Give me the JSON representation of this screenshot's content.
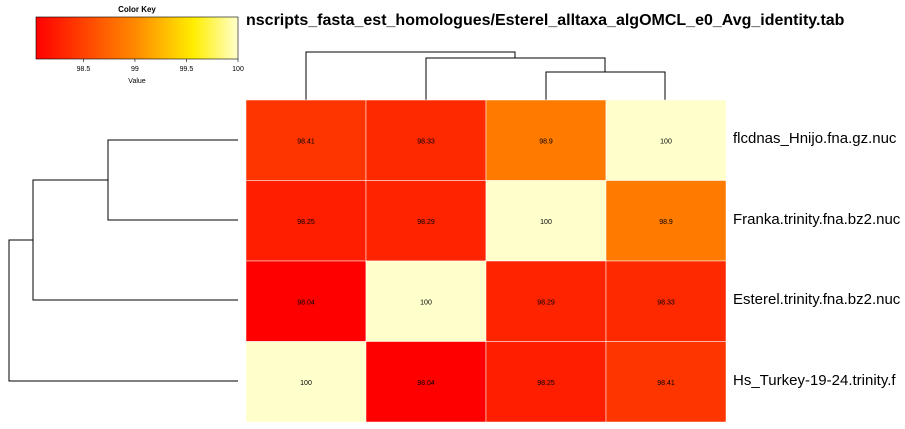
{
  "title": "nscripts_fasta_est_homologues/Esterel_alltaxa_algOMCL_e0_Avg_identity.tab",
  "color_key": {
    "title": "Color Key",
    "xlabel": "Value",
    "ticks": [
      "98.5",
      "99",
      "99.5",
      "100"
    ],
    "range": [
      98.04,
      100
    ],
    "low_color": "#ff0000",
    "high_color": "#ffffcc"
  },
  "chart_data": {
    "type": "heatmap",
    "title": "nscripts_fasta_est_homologues/Esterel_alltaxa_algOMCL_e0_Avg_identity.tab",
    "rows": [
      "flcdnas_Hnijo.fna.gz.nuc",
      "Franka.trinity.fna.bz2.nuc",
      "Esterel.trinity.fna.bz2.nuc",
      "Hs_Turkey-19-24.trinity.f"
    ],
    "values": [
      [
        98.41,
        98.33,
        98.9,
        100
      ],
      [
        98.25,
        98.29,
        100,
        98.9
      ],
      [
        98.04,
        100,
        98.29,
        98.33
      ],
      [
        100,
        98.04,
        98.25,
        98.41
      ]
    ],
    "cell_labels": [
      [
        "98.41",
        "98.33",
        "98.9",
        "100"
      ],
      [
        "98.25",
        "98.29",
        "100",
        "98.9"
      ],
      [
        "98.04",
        "100",
        "98.29",
        "98.33"
      ],
      [
        "100",
        "98.04",
        "98.25",
        "98.41"
      ]
    ],
    "row_dendrogram": true,
    "col_dendrogram": true
  }
}
